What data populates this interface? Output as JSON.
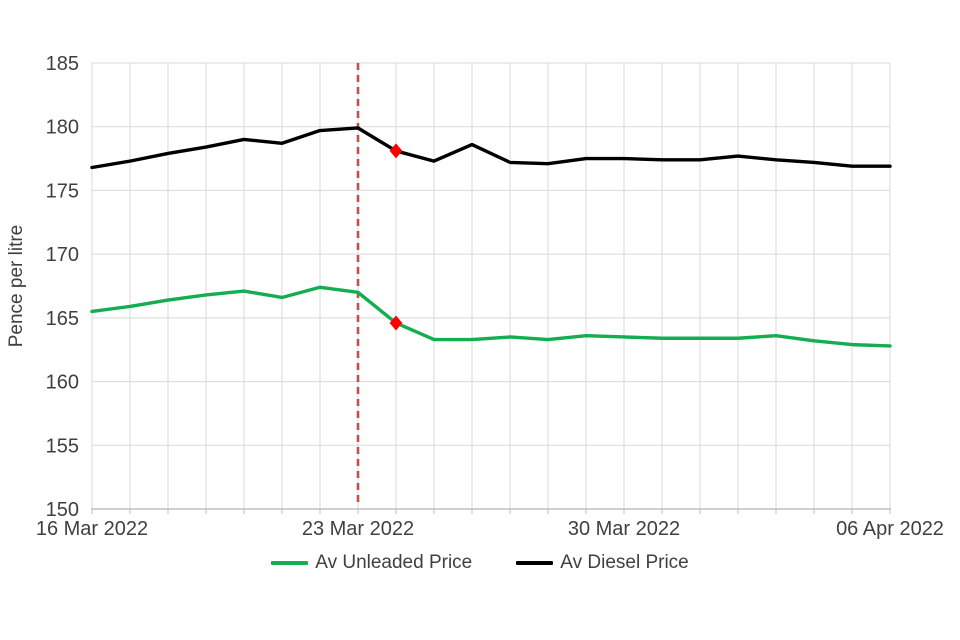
{
  "chart_data": {
    "type": "line",
    "title": "",
    "ylabel": "Pence per litre",
    "ylim": [
      150,
      185
    ],
    "ytick_interval": 5,
    "grid": true,
    "legend_position": "bottom",
    "x": [
      "16 Mar 2022",
      "17 Mar 2022",
      "18 Mar 2022",
      "19 Mar 2022",
      "20 Mar 2022",
      "21 Mar 2022",
      "22 Mar 2022",
      "23 Mar 2022",
      "24 Mar 2022",
      "25 Mar 2022",
      "26 Mar 2022",
      "27 Mar 2022",
      "28 Mar 2022",
      "29 Mar 2022",
      "30 Mar 2022",
      "31 Mar 2022",
      "01 Apr 2022",
      "02 Apr 2022",
      "03 Apr 2022",
      "04 Apr 2022",
      "05 Apr 2022",
      "06 Apr 2022"
    ],
    "x_tick_indices": [
      0,
      7,
      14,
      21
    ],
    "x_tick_labels": [
      "16 Mar 2022",
      "23 Mar 2022",
      "30 Mar 2022",
      "06 Apr 2022"
    ],
    "y_tick_labels": [
      "150",
      "155",
      "160",
      "165",
      "170",
      "175",
      "180",
      "185"
    ],
    "series": [
      {
        "name": "Av Unleaded Price",
        "color": "#14AD51",
        "values": [
          165.5,
          165.9,
          166.4,
          166.8,
          167.1,
          166.6,
          167.4,
          167.0,
          164.6,
          163.3,
          163.3,
          163.5,
          163.3,
          163.6,
          163.5,
          163.4,
          163.4,
          163.4,
          163.6,
          163.2,
          162.9,
          162.8
        ]
      },
      {
        "name": "Av Diesel Price",
        "color": "#000000",
        "values": [
          176.8,
          177.3,
          177.9,
          178.4,
          179.0,
          178.7,
          179.7,
          179.9,
          178.1,
          177.3,
          178.6,
          177.2,
          177.1,
          177.5,
          177.5,
          177.4,
          177.4,
          177.7,
          177.4,
          177.2,
          176.9,
          176.9
        ]
      }
    ],
    "annotations": {
      "vline": {
        "x_index": 7,
        "x_label": "23 Mar 2022",
        "style": "dashed",
        "color": "#C0504D"
      },
      "markers": [
        {
          "series_index": 0,
          "series": "Av Unleaded Price",
          "x_index": 8,
          "x_label": "24 Mar 2022",
          "value": 164.6,
          "shape": "diamond",
          "color": "#FF0000"
        },
        {
          "series_index": 1,
          "series": "Av Diesel Price",
          "x_index": 8,
          "x_label": "24 Mar 2022",
          "value": 178.1,
          "shape": "diamond",
          "color": "#FF0000"
        }
      ]
    }
  },
  "colors": {
    "gridline": "#D9D9D9",
    "axis_line": "#BFBFBF",
    "tick_text": "#404040",
    "background": "#FFFFFF"
  }
}
